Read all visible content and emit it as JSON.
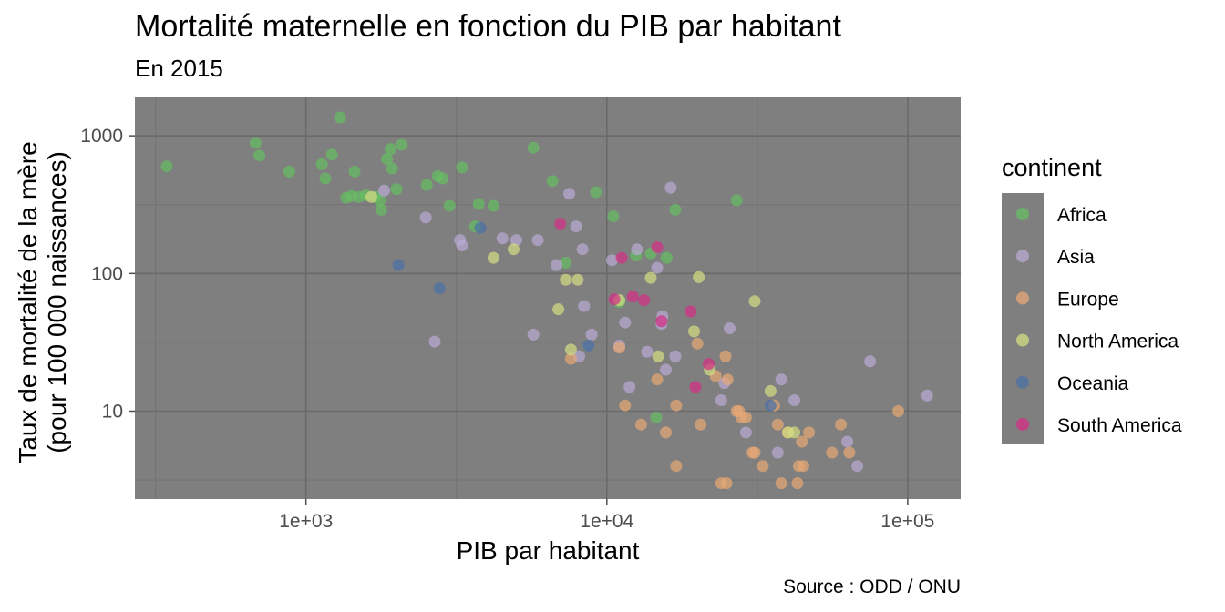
{
  "chart_data": {
    "type": "scatter",
    "title": "Mortalité maternelle en fonction du PIB par habitant",
    "subtitle": "En 2015",
    "xlabel": "PIB par habitant",
    "ylabel_line1": "Taux de mortalité de la mère",
    "ylabel_line2": "(pour 100 000 naissances)",
    "caption": "Source : ODD / ONU",
    "x_scale": "log10",
    "y_scale": "log10",
    "xlim": [
      270,
      150000
    ],
    "ylim": [
      2.3,
      1900
    ],
    "x_ticks": [
      {
        "value": 1000,
        "label": "1e+03"
      },
      {
        "value": 10000,
        "label": "1e+04"
      },
      {
        "value": 100000,
        "label": "1e+05"
      }
    ],
    "y_ticks": [
      {
        "value": 10,
        "label": "10"
      },
      {
        "value": 100,
        "label": "100"
      },
      {
        "value": 1000,
        "label": "1000"
      }
    ],
    "legend_title": "continent",
    "legend_position": "right",
    "series": [
      {
        "name": "Africa",
        "color": "#66bd63",
        "points": [
          [
            345,
            600
          ],
          [
            680,
            890
          ],
          [
            700,
            720
          ],
          [
            880,
            550
          ],
          [
            1130,
            620
          ],
          [
            1160,
            490
          ],
          [
            1220,
            730
          ],
          [
            1300,
            1360
          ],
          [
            1360,
            355
          ],
          [
            1420,
            365
          ],
          [
            1450,
            550
          ],
          [
            1500,
            360
          ],
          [
            1580,
            370
          ],
          [
            1700,
            360
          ],
          [
            1760,
            340
          ],
          [
            1780,
            290
          ],
          [
            1860,
            680
          ],
          [
            1910,
            800
          ],
          [
            1930,
            580
          ],
          [
            2000,
            410
          ],
          [
            2080,
            860
          ],
          [
            2520,
            440
          ],
          [
            2740,
            510
          ],
          [
            2850,
            490
          ],
          [
            3000,
            310
          ],
          [
            3300,
            590
          ],
          [
            3650,
            220
          ],
          [
            3750,
            320
          ],
          [
            4200,
            310
          ],
          [
            5700,
            820
          ],
          [
            6600,
            470
          ],
          [
            7300,
            120
          ],
          [
            9200,
            390
          ],
          [
            10500,
            260
          ],
          [
            11000,
            62
          ],
          [
            12500,
            135
          ],
          [
            14000,
            140
          ],
          [
            14600,
            9
          ],
          [
            15800,
            130
          ],
          [
            16900,
            290
          ],
          [
            27000,
            340
          ]
        ]
      },
      {
        "name": "Asia",
        "color": "#b8a9d2",
        "points": [
          [
            1820,
            400
          ],
          [
            2500,
            255
          ],
          [
            2680,
            32
          ],
          [
            3250,
            175
          ],
          [
            3300,
            160
          ],
          [
            4500,
            180
          ],
          [
            5000,
            175
          ],
          [
            5700,
            36
          ],
          [
            5900,
            175
          ],
          [
            6800,
            115
          ],
          [
            7500,
            380
          ],
          [
            7900,
            220
          ],
          [
            8100,
            25
          ],
          [
            8300,
            150
          ],
          [
            8400,
            58
          ],
          [
            8900,
            36
          ],
          [
            10400,
            125
          ],
          [
            11000,
            30
          ],
          [
            11500,
            44
          ],
          [
            11900,
            15
          ],
          [
            12600,
            150
          ],
          [
            13600,
            27
          ],
          [
            14700,
            110
          ],
          [
            15200,
            43
          ],
          [
            15300,
            49
          ],
          [
            15700,
            20
          ],
          [
            16300,
            420
          ],
          [
            16900,
            25
          ],
          [
            24000,
            12
          ],
          [
            24600,
            16
          ],
          [
            25600,
            40
          ],
          [
            29000,
            7
          ],
          [
            37000,
            5
          ],
          [
            38000,
            17
          ],
          [
            42000,
            12
          ],
          [
            63000,
            6
          ],
          [
            68000,
            4
          ],
          [
            75000,
            23
          ],
          [
            116000,
            13
          ]
        ]
      },
      {
        "name": "Europe",
        "color": "#e6a776",
        "points": [
          [
            7600,
            24
          ],
          [
            11000,
            29
          ],
          [
            11500,
            11
          ],
          [
            13000,
            8
          ],
          [
            14700,
            17
          ],
          [
            15700,
            7
          ],
          [
            17000,
            11
          ],
          [
            17000,
            4
          ],
          [
            20000,
            31
          ],
          [
            20500,
            8
          ],
          [
            23000,
            18
          ],
          [
            24000,
            3
          ],
          [
            24800,
            25
          ],
          [
            25000,
            3
          ],
          [
            25200,
            17
          ],
          [
            27000,
            10
          ],
          [
            27500,
            10
          ],
          [
            28000,
            9
          ],
          [
            29000,
            9
          ],
          [
            30500,
            5
          ],
          [
            31000,
            5
          ],
          [
            33000,
            4
          ],
          [
            36000,
            11
          ],
          [
            37000,
            8
          ],
          [
            38000,
            3
          ],
          [
            40000,
            7
          ],
          [
            43000,
            3
          ],
          [
            43500,
            4
          ],
          [
            44500,
            6
          ],
          [
            45000,
            4
          ],
          [
            47000,
            7
          ],
          [
            56000,
            5
          ],
          [
            60000,
            8
          ],
          [
            64000,
            5
          ],
          [
            93000,
            10
          ]
        ]
      },
      {
        "name": "North America",
        "color": "#d2dd82",
        "points": [
          [
            1650,
            360
          ],
          [
            4200,
            130
          ],
          [
            4900,
            150
          ],
          [
            6900,
            55
          ],
          [
            7300,
            90
          ],
          [
            7600,
            28
          ],
          [
            8000,
            90
          ],
          [
            11000,
            64
          ],
          [
            14000,
            93
          ],
          [
            14800,
            25
          ],
          [
            19500,
            38
          ],
          [
            20200,
            94
          ],
          [
            22000,
            20
          ],
          [
            31000,
            63
          ],
          [
            35000,
            14
          ],
          [
            40000,
            7
          ],
          [
            42000,
            7
          ]
        ]
      },
      {
        "name": "Oceania",
        "color": "#4b71a6",
        "points": [
          [
            2030,
            115
          ],
          [
            2780,
            78
          ],
          [
            3800,
            215
          ],
          [
            8700,
            30
          ],
          [
            35000,
            11
          ]
        ]
      },
      {
        "name": "South America",
        "color": "#d42f85",
        "points": [
          [
            7000,
            230
          ],
          [
            10600,
            65
          ],
          [
            11200,
            130
          ],
          [
            12200,
            68
          ],
          [
            13300,
            64
          ],
          [
            14700,
            155
          ],
          [
            15200,
            45
          ],
          [
            19000,
            53
          ],
          [
            19700,
            15
          ],
          [
            21800,
            22
          ]
        ]
      }
    ]
  }
}
